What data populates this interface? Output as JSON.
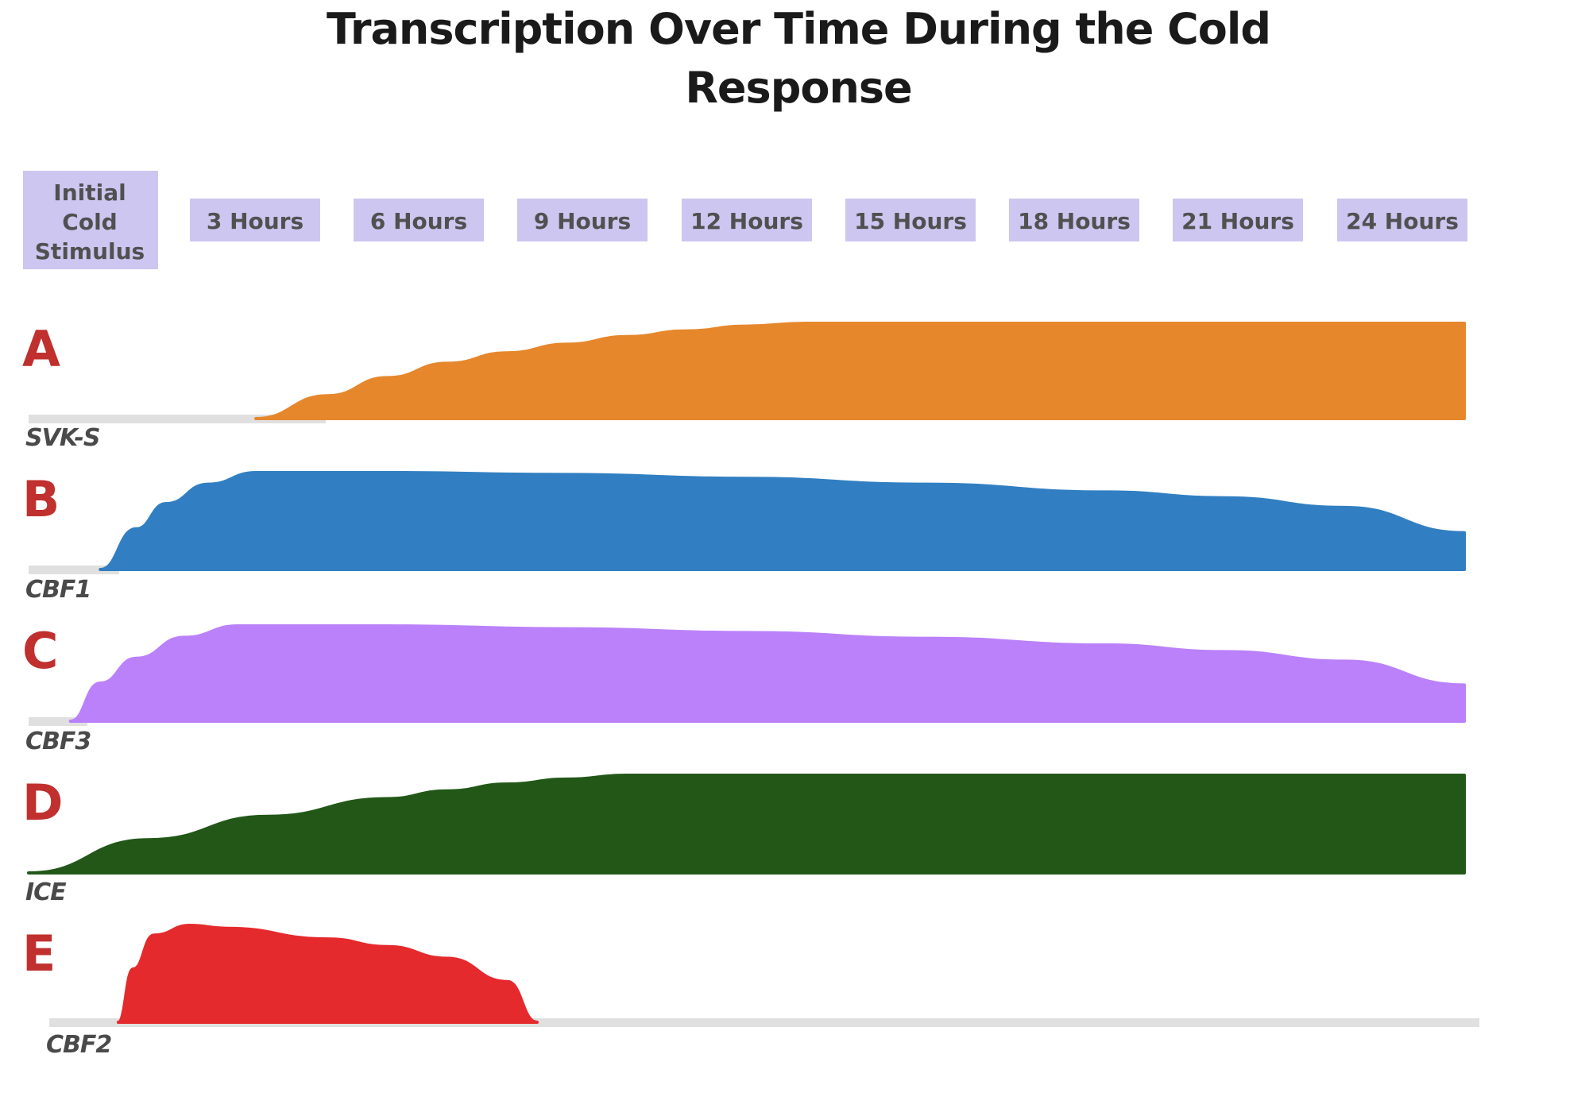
{
  "chart_data": {
    "type": "area",
    "title": "Transcription Over Time During the Cold Response",
    "x_categories": [
      "Initial Cold Stimulus",
      "3 Hours",
      "6 Hours",
      "9 Hours",
      "12 Hours",
      "15 Hours",
      "18 Hours",
      "21 Hours",
      "24 Hours"
    ],
    "x_unit_hours": [
      0,
      3,
      6,
      9,
      12,
      15,
      18,
      21,
      24
    ],
    "letter_color": "#c0302e",
    "baseline_color": "#e0e0e0",
    "header_bg": "#ccc6f0",
    "series": [
      {
        "letter": "A",
        "gene": "SVK-S",
        "color": "#e6872c",
        "x": [
          3.8,
          5,
          6,
          7,
          8,
          9,
          10,
          11,
          12,
          13,
          24
        ],
        "y": [
          0,
          0.24,
          0.43,
          0.58,
          0.69,
          0.78,
          0.86,
          0.92,
          0.97,
          1.0,
          1.0
        ]
      },
      {
        "letter": "B",
        "gene": "CBF1",
        "color": "#317fc2",
        "x": [
          1.2,
          1.8,
          2.3,
          3.0,
          3.8,
          4.3,
          6.0,
          9.0,
          12.0,
          15.0,
          18.0,
          20.0,
          22.0,
          24.0
        ],
        "y": [
          0,
          0.42,
          0.68,
          0.88,
          1.0,
          1.0,
          1.0,
          0.98,
          0.94,
          0.88,
          0.8,
          0.74,
          0.64,
          0.38
        ]
      },
      {
        "letter": "C",
        "gene": "CBF3",
        "color": "#bb81fb",
        "x": [
          0.7,
          1.2,
          1.8,
          2.6,
          3.5,
          4.3,
          6.0,
          9.0,
          12.0,
          15.0,
          18.0,
          20.0,
          22.0,
          24.0
        ],
        "y": [
          0,
          0.4,
          0.66,
          0.88,
          1.0,
          1.0,
          1.0,
          0.97,
          0.93,
          0.87,
          0.8,
          0.73,
          0.63,
          0.38
        ]
      },
      {
        "letter": "D",
        "gene": "ICE",
        "color": "#225718",
        "x": [
          0,
          2,
          4,
          6,
          7,
          8,
          9,
          10,
          24
        ],
        "y": [
          0,
          0.34,
          0.58,
          0.76,
          0.84,
          0.91,
          0.96,
          1.0,
          1.0
        ]
      },
      {
        "letter": "E",
        "gene": "CBF2",
        "color": "#e52a2d",
        "x": [
          1.5,
          1.75,
          2.1,
          2.7,
          3.3,
          5.0,
          6.0,
          7.0,
          8.0,
          8.5
        ],
        "y": [
          0,
          0.55,
          0.9,
          1.0,
          0.97,
          0.86,
          0.78,
          0.66,
          0.42,
          0
        ]
      }
    ]
  }
}
